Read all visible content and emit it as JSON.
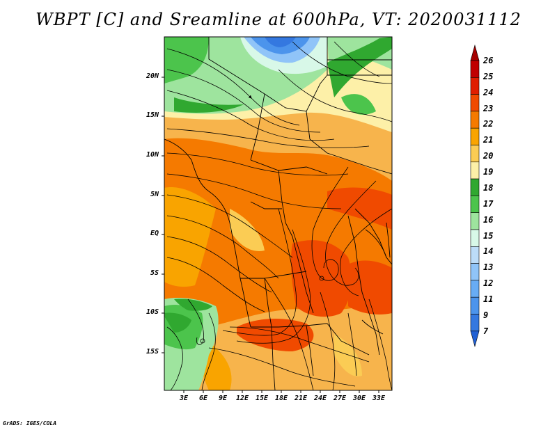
{
  "title": "WBPT [C] and Sreamline at 600hPa, VT: 2020031112",
  "lat_labels": [
    "20N",
    "15N",
    "10N",
    "5N",
    "EQ",
    "5S",
    "10S",
    "15S"
  ],
  "lon_labels": [
    "3E",
    "6E",
    "9E",
    "12E",
    "15E",
    "18E",
    "21E",
    "24E",
    "27E",
    "30E",
    "33E"
  ],
  "colorbar": {
    "labels": [
      "26",
      "25",
      "24",
      "23",
      "22",
      "21",
      "20",
      "19",
      "18",
      "17",
      "16",
      "15",
      "14",
      "13",
      "12",
      "11",
      "9",
      "7"
    ],
    "colors": [
      "#a50000",
      "#c00000",
      "#e01e00",
      "#f04a00",
      "#f57a00",
      "#f9a400",
      "#fbcc54",
      "#fdf0a8",
      "#30a830",
      "#4cc44c",
      "#9ee49e",
      "#d8f8e8",
      "#bcdcf8",
      "#90c4f8",
      "#68acf4",
      "#4c94ec",
      "#3478e0",
      "#2060d4"
    ]
  },
  "credit": "GrADS: IGES/COLA"
}
